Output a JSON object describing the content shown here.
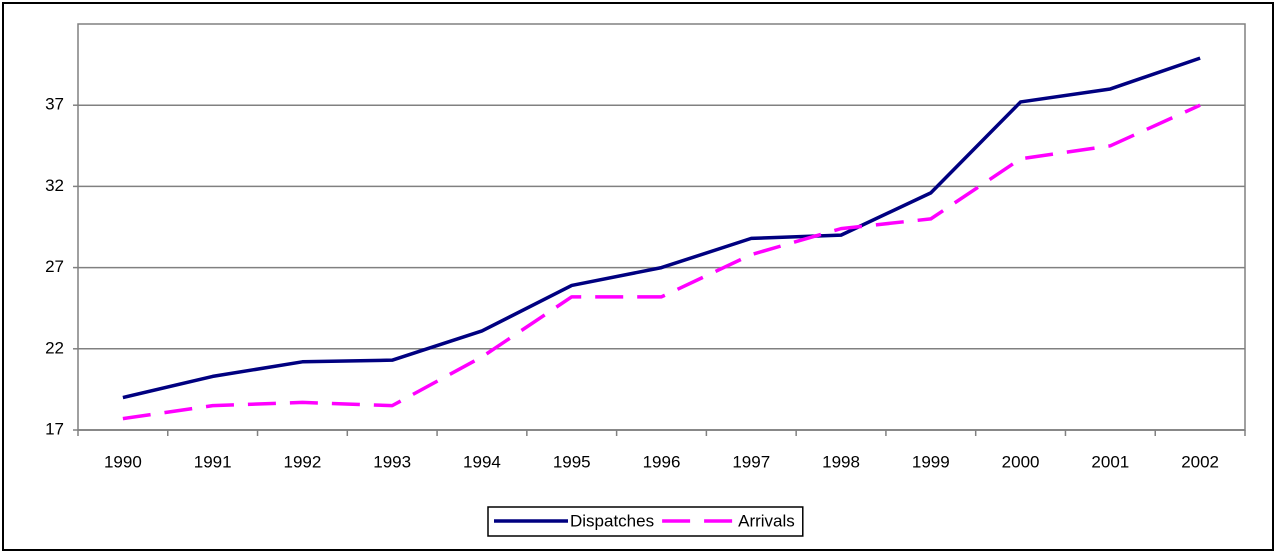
{
  "chart_data": {
    "type": "line",
    "categories": [
      "1990",
      "1991",
      "1992",
      "1993",
      "1994",
      "1995",
      "1996",
      "1997",
      "1998",
      "1999",
      "2000",
      "2001",
      "2002"
    ],
    "series": [
      {
        "name": "Dispatches",
        "color": "#000080",
        "dash": false,
        "values": [
          19.0,
          20.3,
          21.2,
          21.3,
          23.1,
          25.9,
          27.0,
          28.8,
          29.0,
          31.6,
          37.2,
          38.0,
          39.9
        ]
      },
      {
        "name": "Arrivals",
        "color": "#ff00ff",
        "dash": true,
        "values": [
          17.7,
          18.5,
          18.7,
          18.5,
          21.5,
          25.2,
          25.2,
          27.8,
          29.4,
          30.0,
          33.7,
          34.5,
          37.0
        ]
      }
    ],
    "ylim": [
      17,
      42
    ],
    "yticks": [
      17,
      22,
      27,
      32,
      37
    ],
    "grid": true,
    "legend": "bottom"
  }
}
